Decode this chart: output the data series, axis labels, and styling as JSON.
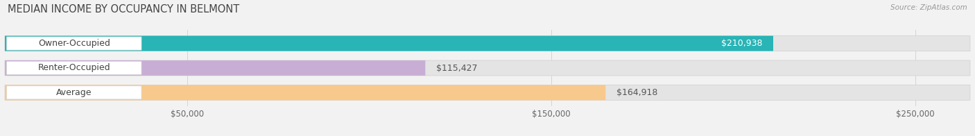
{
  "title": "MEDIAN INCOME BY OCCUPANCY IN BELMONT",
  "source": "Source: ZipAtlas.com",
  "categories": [
    "Owner-Occupied",
    "Renter-Occupied",
    "Average"
  ],
  "values": [
    210938,
    115427,
    164918
  ],
  "bar_colors": [
    "#29b4b6",
    "#c8aed4",
    "#f8c98c"
  ],
  "bar_labels": [
    "$210,938",
    "$115,427",
    "$164,918"
  ],
  "label_text_colors": [
    "#ffffff",
    "#666666",
    "#666666"
  ],
  "background_color": "#f2f2f2",
  "bar_bg_color": "#e4e4e4",
  "label_bg_color": "#ffffff",
  "xlim": [
    0,
    265000
  ],
  "xticks": [
    50000,
    150000,
    250000
  ],
  "xtick_labels": [
    "$50,000",
    "$150,000",
    "$250,000"
  ],
  "title_fontsize": 10.5,
  "label_fontsize": 9,
  "tick_fontsize": 8.5,
  "bar_height": 0.62,
  "source_color": "#999999",
  "grid_color": "#cccccc"
}
